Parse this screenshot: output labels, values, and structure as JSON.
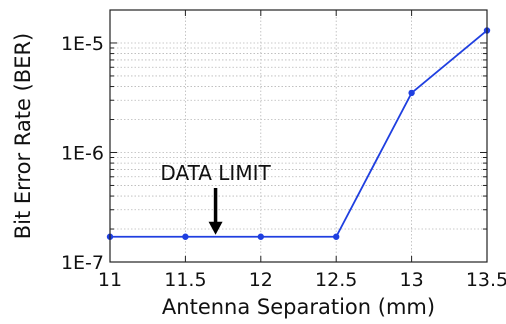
{
  "chart_data": {
    "type": "line",
    "xlabel": "Antenna Separation (mm)",
    "ylabel": "Bit Error Rate (BER)",
    "y_scale": "log",
    "xlim": [
      11,
      13.5
    ],
    "ylim": [
      1e-07,
      2e-05
    ],
    "x_ticks": [
      11,
      11.5,
      12,
      12.5,
      13,
      13.5
    ],
    "x_tick_labels": [
      "11",
      "11.5",
      "12",
      "12.5",
      "13",
      "13.5"
    ],
    "y_ticks": [
      1e-07,
      1e-06,
      1e-05
    ],
    "y_tick_labels": [
      "1E-7",
      "1E-6",
      "1E-5"
    ],
    "grid": true,
    "series": [
      {
        "color": "#1f3fe0",
        "x": [
          11,
          11.5,
          12,
          12.5,
          13,
          13.5
        ],
        "y": [
          1.7e-07,
          1.7e-07,
          1.7e-07,
          1.7e-07,
          3.5e-06,
          1.3e-05
        ]
      }
    ],
    "annotations": [
      {
        "text": "DATA LIMIT",
        "arrow_to": [
          11.7,
          1.7e-07
        ]
      }
    ]
  }
}
